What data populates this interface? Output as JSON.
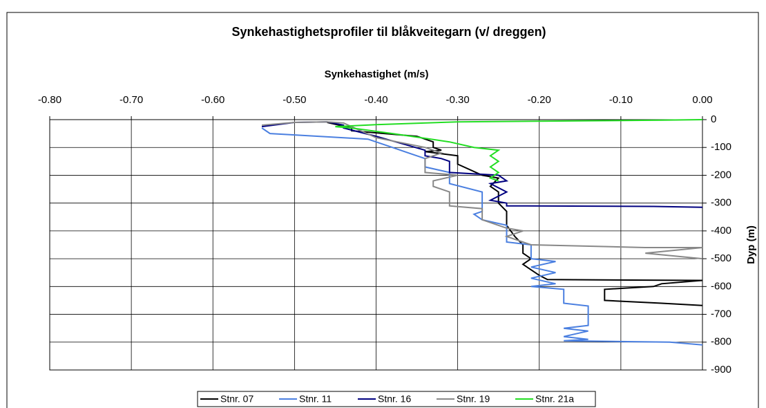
{
  "chart_data": {
    "type": "line",
    "title": "Synkehastighetsprofiler til blåkveitegarn (v/ dreggen)",
    "x_label": "Synkehastighet (m/s)",
    "y_label": "Dyp (m)",
    "xlim": [
      -0.8,
      0
    ],
    "xticks": [
      {
        "value": -0.8,
        "label": "-0.80"
      },
      {
        "value": -0.7,
        "label": "-0.70"
      },
      {
        "value": -0.6,
        "label": "-0.60"
      },
      {
        "value": -0.5,
        "label": "-0.50"
      },
      {
        "value": -0.4,
        "label": "-0.40"
      },
      {
        "value": -0.3,
        "label": "-0.30"
      },
      {
        "value": -0.2,
        "label": "-0.20"
      },
      {
        "value": -0.1,
        "label": "-0.10"
      },
      {
        "value": 0,
        "label": "0.00"
      }
    ],
    "ylim": [
      -900,
      0
    ],
    "yticks": [
      0,
      -100,
      -200,
      -300,
      -400,
      -500,
      -600,
      -700,
      -800,
      -900
    ],
    "grid": true,
    "legend": "bottom",
    "series": [
      {
        "name": "Stnr. 07",
        "color": "#000000",
        "x": [
          -0.46,
          -0.43,
          -0.43,
          -0.35,
          -0.33,
          -0.33,
          -0.32,
          -0.34,
          -0.3,
          -0.3,
          -0.27,
          -0.25,
          -0.26,
          -0.25,
          -0.25,
          -0.24,
          -0.24,
          -0.23,
          -0.22,
          -0.22,
          -0.21,
          -0.22,
          -0.21,
          -0.2,
          -0.19,
          0,
          -0.05,
          -0.06,
          -0.12,
          -0.12,
          -0.05,
          0
        ],
        "values": [
          -10,
          -30,
          -40,
          -60,
          -80,
          -100,
          -110,
          -115,
          -130,
          -160,
          -200,
          -210,
          -240,
          -260,
          -300,
          -330,
          -380,
          -420,
          -450,
          -480,
          -500,
          -520,
          -540,
          -560,
          -575,
          -578,
          -590,
          -600,
          -610,
          -650,
          -660,
          -668
        ]
      },
      {
        "name": "Stnr. 11",
        "color": "#4a7fe0",
        "x": [
          -0.54,
          -0.53,
          -0.5,
          -0.41,
          -0.38,
          -0.36,
          -0.34,
          -0.34,
          -0.31,
          -0.31,
          -0.27,
          -0.27,
          -0.28,
          -0.27,
          -0.24,
          -0.24,
          -0.24,
          -0.21,
          -0.21,
          -0.18,
          -0.21,
          -0.18,
          -0.21,
          -0.18,
          -0.21,
          -0.17,
          -0.17,
          -0.14,
          -0.14,
          -0.17,
          -0.14,
          -0.17,
          -0.14,
          -0.17,
          -0.04,
          0
        ],
        "values": [
          -30,
          -50,
          -55,
          -70,
          -100,
          -120,
          -140,
          -170,
          -190,
          -230,
          -260,
          -330,
          -340,
          -360,
          -380,
          -420,
          -440,
          -450,
          -500,
          -510,
          -530,
          -550,
          -570,
          -590,
          -600,
          -610,
          -660,
          -670,
          -740,
          -750,
          -760,
          -780,
          -790,
          -795,
          -800,
          -810
        ]
      },
      {
        "name": "Stnr. 16",
        "color": "#000080",
        "x": [
          -0.54,
          -0.5,
          -0.46,
          -0.44,
          -0.44,
          -0.4,
          -0.34,
          -0.34,
          -0.32,
          -0.31,
          -0.31,
          -0.25,
          -0.24,
          -0.26,
          -0.24,
          -0.26,
          -0.24,
          -0.24,
          -0.06,
          0
        ],
        "values": [
          -25,
          -10,
          -8,
          -20,
          -30,
          -60,
          -110,
          -130,
          -140,
          -150,
          -190,
          -200,
          -220,
          -230,
          -260,
          -290,
          -300,
          -310,
          -312,
          -315
        ]
      },
      {
        "name": "Stnr. 19",
        "color": "#888888",
        "x": [
          -0.54,
          -0.5,
          -0.46,
          -0.44,
          -0.4,
          -0.34,
          -0.32,
          -0.34,
          -0.34,
          -0.3,
          -0.33,
          -0.33,
          -0.31,
          -0.31,
          -0.27,
          -0.27,
          -0.24,
          -0.22,
          -0.24,
          -0.22,
          -0.21,
          -0.07,
          0,
          -0.07,
          0
        ],
        "values": [
          -20,
          -10,
          -8,
          -12,
          -65,
          -100,
          -120,
          -140,
          -190,
          -200,
          -220,
          -240,
          -260,
          -310,
          -320,
          -360,
          -390,
          -400,
          -420,
          -440,
          -450,
          -460,
          -460,
          -480,
          -500
        ]
      },
      {
        "name": "Stnr. 21a",
        "color": "#22dd22",
        "x": [
          0,
          -0.05,
          -0.3,
          -0.4,
          -0.45,
          -0.43,
          -0.38,
          -0.31,
          -0.28,
          -0.25,
          -0.26,
          -0.25,
          -0.26,
          -0.25,
          -0.26,
          -0.25
        ],
        "values": [
          0,
          -2,
          -8,
          -18,
          -25,
          -30,
          -50,
          -80,
          -100,
          -110,
          -130,
          -150,
          -170,
          -190,
          -210,
          -220
        ]
      }
    ]
  }
}
